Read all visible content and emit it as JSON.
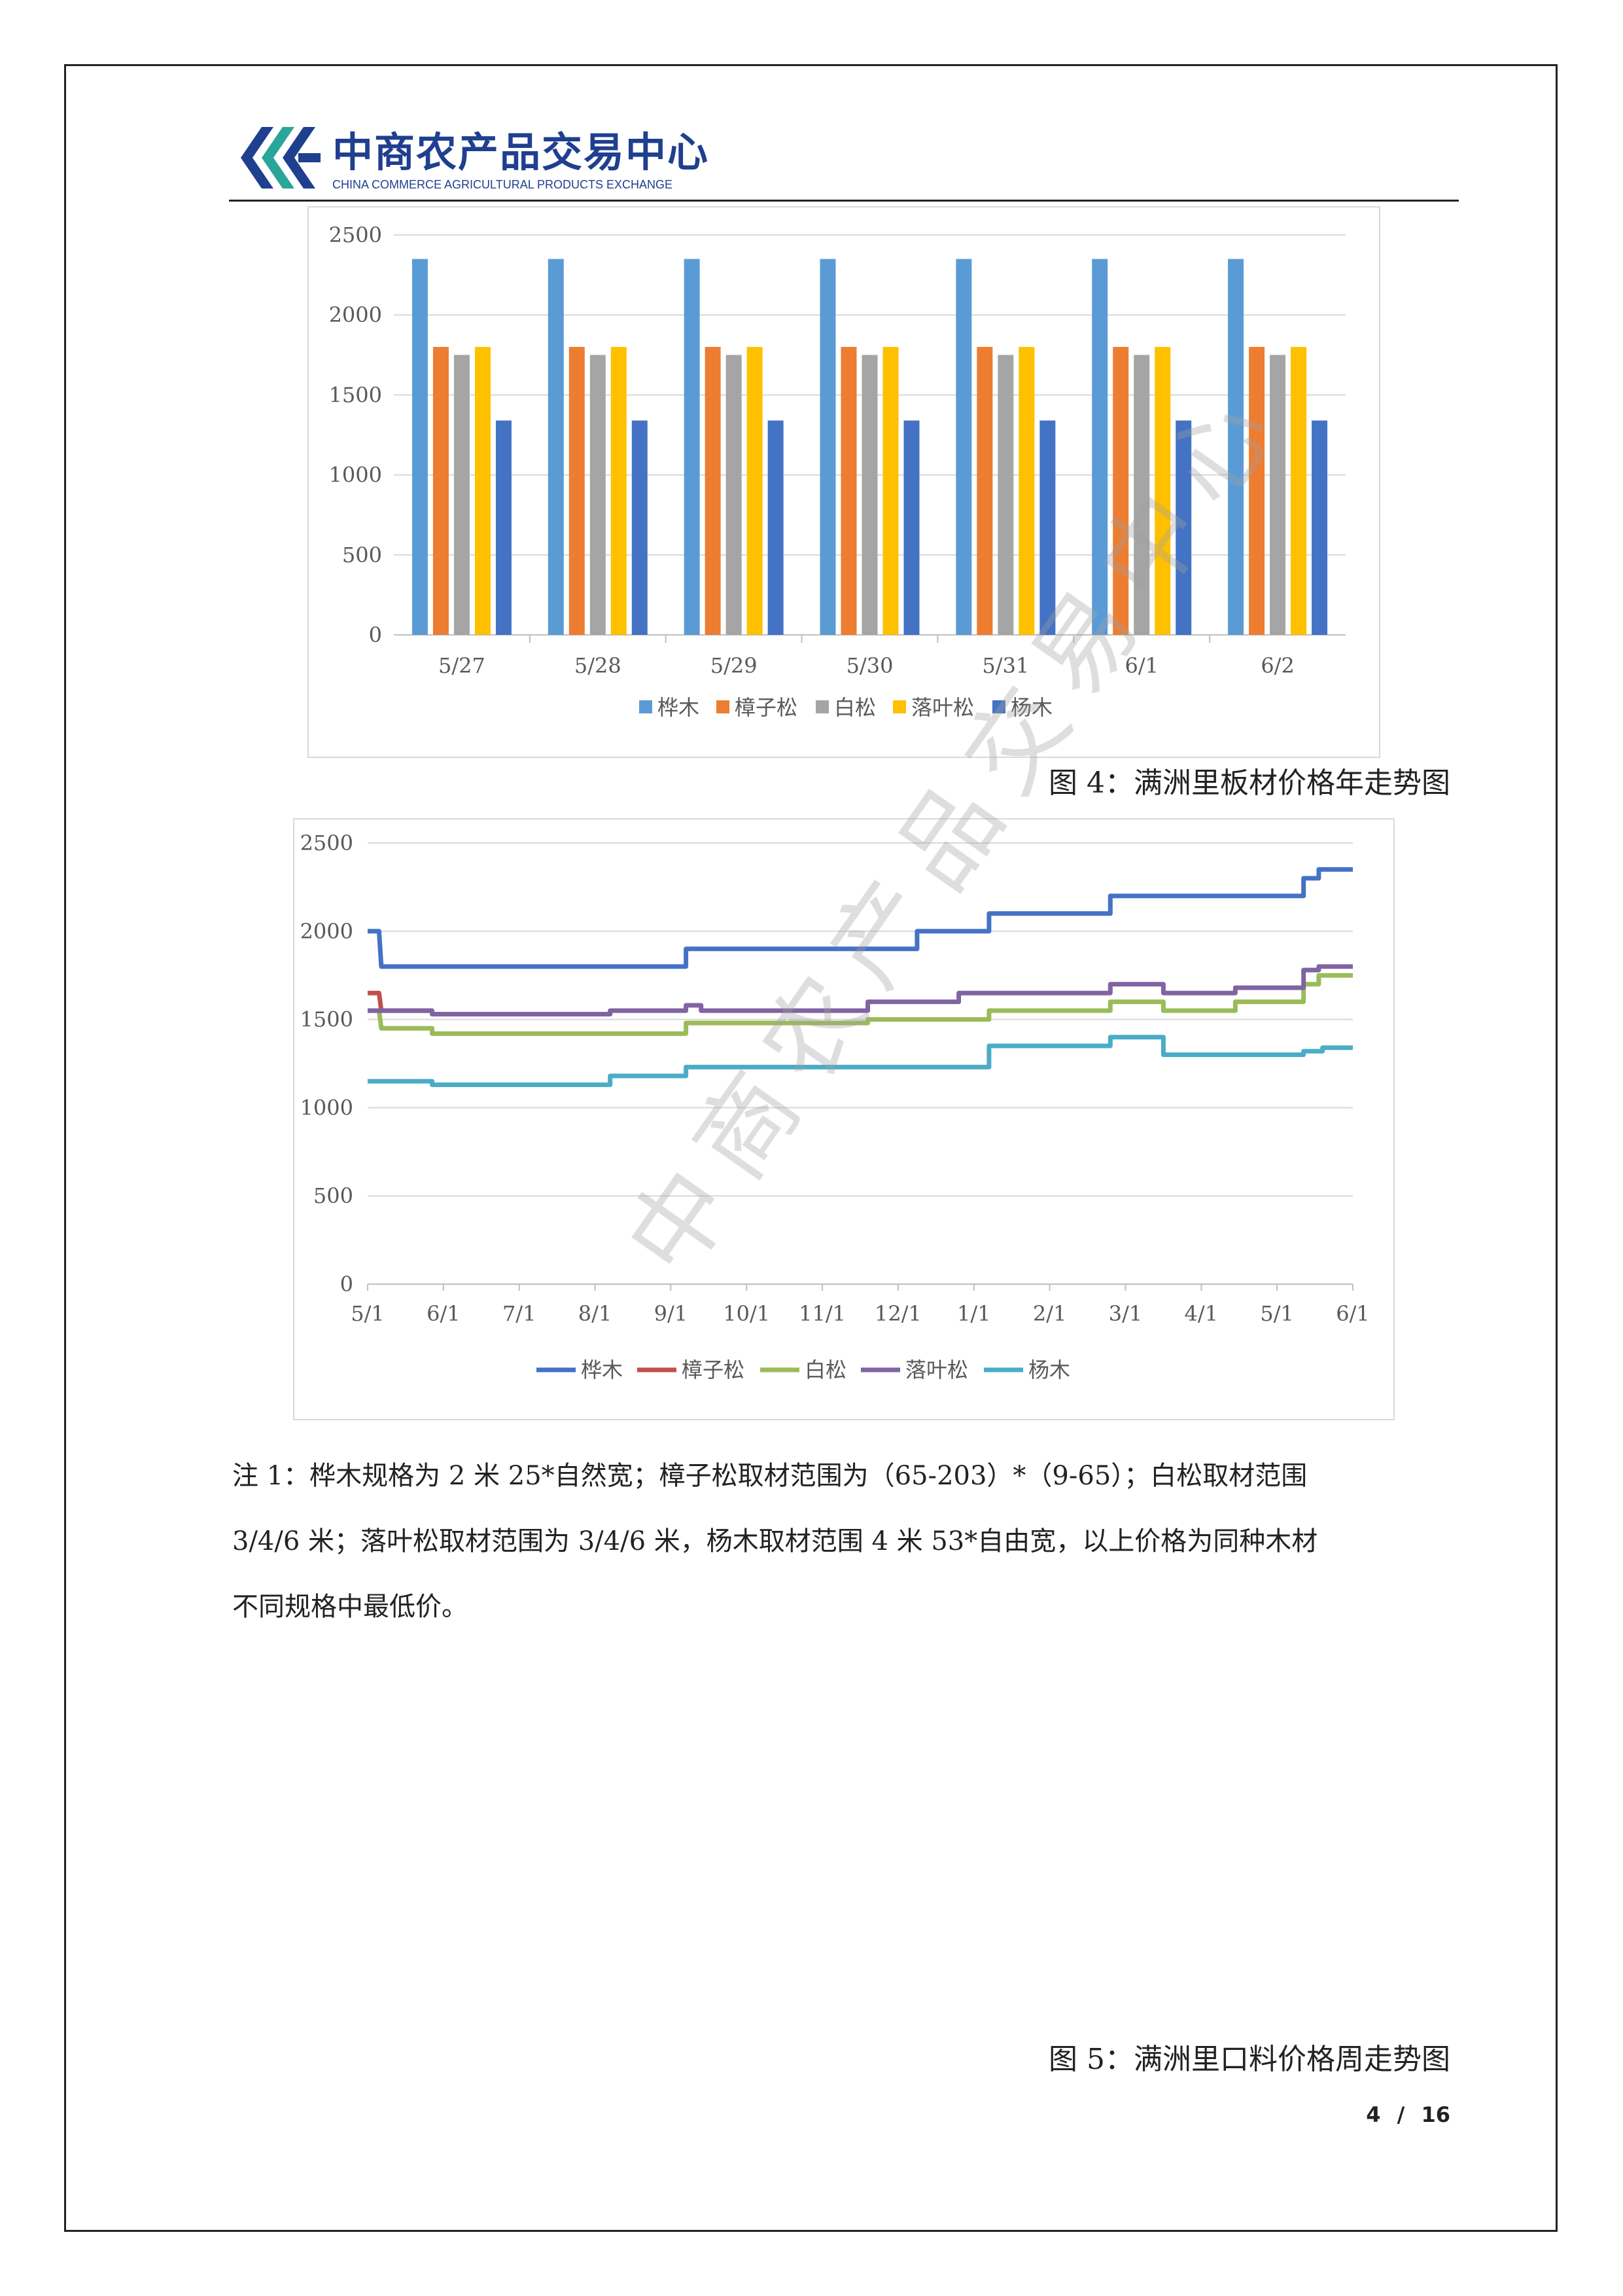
{
  "header": {
    "logo_cn": "中商农产品交易中心",
    "logo_en": "CHINA COMMERCE AGRICULTURAL PRODUCTS EXCHANGE",
    "brand_color": "#1f3f8f"
  },
  "chart_data": [
    {
      "type": "bar",
      "categories": [
        "5/27",
        "5/28",
        "5/29",
        "5/30",
        "5/31",
        "6/1",
        "6/2"
      ],
      "series": [
        {
          "name": "桦木",
          "color": "#5b9bd5",
          "values": [
            2350,
            2350,
            2350,
            2350,
            2350,
            2350,
            2350
          ]
        },
        {
          "name": "樟子松",
          "color": "#ed7d31",
          "values": [
            1800,
            1800,
            1800,
            1800,
            1800,
            1800,
            1800
          ]
        },
        {
          "name": "白松",
          "color": "#a5a5a5",
          "values": [
            1750,
            1750,
            1750,
            1750,
            1750,
            1750,
            1750
          ]
        },
        {
          "name": "落叶松",
          "color": "#ffc000",
          "values": [
            1800,
            1800,
            1800,
            1800,
            1800,
            1800,
            1800
          ]
        },
        {
          "name": "杨木",
          "color": "#4472c4",
          "values": [
            1340,
            1340,
            1340,
            1340,
            1340,
            1340,
            1340
          ]
        }
      ],
      "yticks": [
        "0",
        "500",
        "1000",
        "1500",
        "2000",
        "2500"
      ],
      "ylim": [
        0,
        2500
      ],
      "grid": true,
      "legend": "bottom"
    },
    {
      "type": "line",
      "x_ticks": [
        "5/1",
        "6/1",
        "7/1",
        "8/1",
        "9/1",
        "10/1",
        "11/1",
        "12/1",
        "1/1",
        "2/1",
        "3/1",
        "4/1",
        "5/1",
        "6/1"
      ],
      "yticks": [
        "0",
        "500",
        "1000",
        "1500",
        "2000",
        "2500"
      ],
      "ylim": [
        0,
        2500
      ],
      "grid": true,
      "legend": "bottom",
      "step": true,
      "series": [
        {
          "name": "桦木",
          "color": "#4472c4",
          "points": [
            [
              0,
              2000
            ],
            [
              0.15,
              2000
            ],
            [
              0.18,
              1800
            ],
            [
              4.2,
              1800
            ],
            [
              4.2,
              1900
            ],
            [
              7.25,
              1900
            ],
            [
              7.25,
              2000
            ],
            [
              8.2,
              2000
            ],
            [
              8.2,
              2100
            ],
            [
              9.8,
              2100
            ],
            [
              9.8,
              2200
            ],
            [
              12.35,
              2200
            ],
            [
              12.35,
              2300
            ],
            [
              12.55,
              2300
            ],
            [
              12.55,
              2350
            ],
            [
              13,
              2350
            ]
          ]
        },
        {
          "name": "樟子松",
          "color": "#c0504d",
          "points": [
            [
              0,
              1650
            ],
            [
              0.15,
              1650
            ],
            [
              0.18,
              1550
            ],
            [
              0.85,
              1550
            ]
          ]
        },
        {
          "name": "白松",
          "color": "#9bbb59",
          "points": [
            [
              0,
              1550
            ],
            [
              0.15,
              1550
            ],
            [
              0.18,
              1450
            ],
            [
              0.85,
              1450
            ],
            [
              0.85,
              1420
            ],
            [
              4.2,
              1420
            ],
            [
              4.2,
              1480
            ],
            [
              6.6,
              1480
            ],
            [
              6.6,
              1500
            ],
            [
              8.2,
              1500
            ],
            [
              8.2,
              1550
            ],
            [
              9.8,
              1550
            ],
            [
              9.8,
              1600
            ],
            [
              10.5,
              1600
            ],
            [
              10.5,
              1550
            ],
            [
              11.45,
              1550
            ],
            [
              11.45,
              1600
            ],
            [
              12.35,
              1600
            ],
            [
              12.35,
              1700
            ],
            [
              12.55,
              1700
            ],
            [
              12.55,
              1750
            ],
            [
              13,
              1750
            ]
          ]
        },
        {
          "name": "落叶松",
          "color": "#8064a2",
          "points": [
            [
              0,
              1550
            ],
            [
              0.85,
              1550
            ],
            [
              0.85,
              1530
            ],
            [
              3.2,
              1530
            ],
            [
              3.2,
              1550
            ],
            [
              4.2,
              1550
            ],
            [
              4.2,
              1580
            ],
            [
              4.4,
              1580
            ],
            [
              4.4,
              1550
            ],
            [
              6.6,
              1550
            ],
            [
              6.6,
              1600
            ],
            [
              7.8,
              1600
            ],
            [
              7.8,
              1620
            ],
            [
              7.8,
              1650
            ],
            [
              9.8,
              1650
            ],
            [
              9.8,
              1700
            ],
            [
              10.5,
              1700
            ],
            [
              10.5,
              1650
            ],
            [
              11.45,
              1650
            ],
            [
              11.45,
              1680
            ],
            [
              12.35,
              1680
            ],
            [
              12.35,
              1780
            ],
            [
              12.55,
              1780
            ],
            [
              12.55,
              1800
            ],
            [
              13,
              1800
            ]
          ]
        },
        {
          "name": "杨木",
          "color": "#4bacc6",
          "points": [
            [
              0,
              1150
            ],
            [
              0.85,
              1150
            ],
            [
              0.85,
              1130
            ],
            [
              3.2,
              1130
            ],
            [
              3.2,
              1180
            ],
            [
              4.2,
              1180
            ],
            [
              4.2,
              1230
            ],
            [
              8.2,
              1230
            ],
            [
              8.2,
              1350
            ],
            [
              9.8,
              1350
            ],
            [
              9.8,
              1400
            ],
            [
              10.5,
              1400
            ],
            [
              10.5,
              1300
            ],
            [
              12.35,
              1300
            ],
            [
              12.35,
              1320
            ],
            [
              12.6,
              1320
            ],
            [
              12.6,
              1340
            ],
            [
              13,
              1340
            ]
          ]
        }
      ]
    }
  ],
  "captions": {
    "fig4": "图 4：满洲里板材价格年走势图",
    "fig5": "图 5：满洲里口料价格周走势图"
  },
  "note": {
    "line1": "注 1：桦木规格为 2 米 25*自然宽；樟子松取材范围为（65-203）*（9-65）；白松取材范围",
    "line2": "3/4/6 米；落叶松取材范围为 3/4/6 米，杨木取材范围 4 米 53*自由宽，以上价格为同种木材",
    "line3": "不同规格中最低价。"
  },
  "page": {
    "current": "4",
    "sep": "/",
    "total": "16"
  },
  "watermark": "中商农产品交易中心"
}
